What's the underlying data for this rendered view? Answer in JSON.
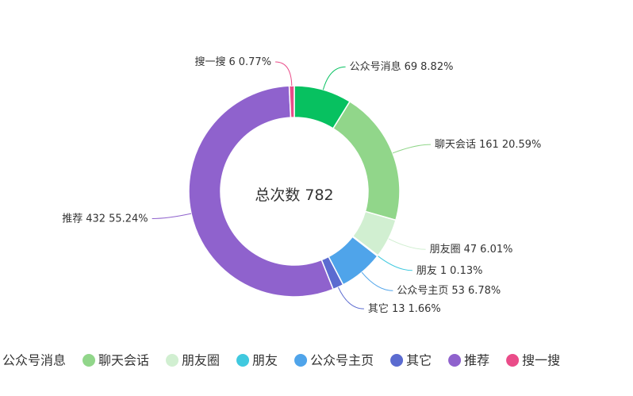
{
  "chart_data": {
    "type": "donut",
    "center_label": "总次数",
    "total": 782,
    "categories": [
      "公众号消息",
      "聊天会话",
      "朋友圈",
      "朋友",
      "公众号主页",
      "其它",
      "推荐",
      "搜一搜"
    ],
    "values": [
      69,
      161,
      47,
      1,
      53,
      13,
      432,
      6
    ],
    "percent_labels": [
      "8.82%",
      "20.59%",
      "6.01%",
      "0.13%",
      "6.78%",
      "1.66%",
      "55.24%",
      "0.77%"
    ],
    "colors": [
      "#07c160",
      "#91d68a",
      "#d1efd1",
      "#40c9df",
      "#4fa4ea",
      "#5b6bd0",
      "#8f62cd",
      "#ea4c89"
    ],
    "legend": "bottom"
  }
}
